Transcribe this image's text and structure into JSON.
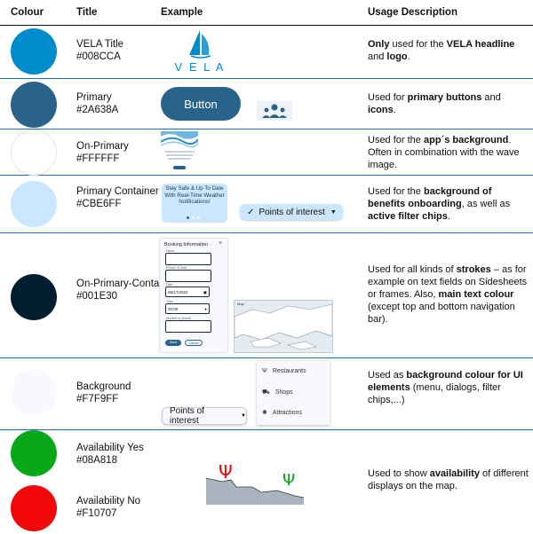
{
  "header": {
    "colour": "Colour",
    "title": "Title",
    "example": "Example",
    "usage": "Usage Description"
  },
  "rows": [
    {
      "name": "VELA Title",
      "hex": "#008CCA",
      "color": "#008CCA",
      "desc": [
        {
          "t": "Only",
          "b": true
        },
        {
          "t": " used for the "
        },
        {
          "t": "VELA headline",
          "b": true
        },
        {
          "t": " and "
        },
        {
          "t": "logo",
          "b": true
        },
        {
          "t": "."
        }
      ]
    },
    {
      "name": "Primary",
      "hex": "#2A638A",
      "color": "#2A638A",
      "desc": [
        {
          "t": "Used for "
        },
        {
          "t": "primary buttons",
          "b": true
        },
        {
          "t": " and "
        },
        {
          "t": "icons",
          "b": true
        },
        {
          "t": "."
        }
      ]
    },
    {
      "name": "On-Primary",
      "hex": "#FFFFFF",
      "color": "#FFFFFF",
      "desc": [
        {
          "t": "Used for the "
        },
        {
          "t": "app´s background",
          "b": true
        },
        {
          "t": ". Often in combination with the wave image."
        }
      ]
    },
    {
      "name": "Primary Container",
      "hex": "#CBE6FF",
      "color": "#CBE6FF",
      "desc": [
        {
          "t": "Used for the "
        },
        {
          "t": "background of benefits onboarding",
          "b": true
        },
        {
          "t": ", as well as "
        },
        {
          "t": "active filter chips",
          "b": true
        },
        {
          "t": "."
        }
      ]
    },
    {
      "name": "On-Primary-Container",
      "hex": "#001E30",
      "color": "#001E30",
      "desc": [
        {
          "t": "Used for all kinds of "
        },
        {
          "t": "strokes",
          "b": true
        },
        {
          "t": " – as for example on text fields on Sidesheets or frames. Also, "
        },
        {
          "t": "main text colour",
          "b": true
        },
        {
          "t": " (except top and bottom navigation bar)."
        }
      ]
    },
    {
      "name": "Background",
      "hex": "#F7F9FF",
      "color": "#F7F9FF",
      "desc": [
        {
          "t": "Used as "
        },
        {
          "t": "background colour for UI elements",
          "b": true
        },
        {
          "t": " (menu, dialogs, filter chips,...)"
        }
      ]
    },
    {
      "name": "Availability Yes",
      "hex": "#08A818",
      "color": "#08A818"
    },
    {
      "name": "Availability No",
      "hex": "#F10707",
      "color": "#F10707"
    }
  ],
  "availability_desc": [
    {
      "t": "Used to show "
    },
    {
      "t": "availability",
      "b": true
    },
    {
      "t": " of different displays on the map."
    }
  ],
  "examples": {
    "logo_text": "V E L A",
    "button_label": "Button",
    "onboarding_text": "Stay Safe & Up To Date With Real-Time Weather Notifications!",
    "chip_label": "Points of interest",
    "booking_title": "Booking Information",
    "booking_fields": [
      "Name",
      "Phone / E-Mail",
      "Date",
      "Time",
      "Number of people"
    ],
    "booking_date": "06/17/2022",
    "booking_time": "20:00",
    "booking_send": "Send",
    "booking_cancel": "Cancel",
    "map_label": "Map",
    "menu_items": [
      "Restaurants",
      "Shops",
      "Attractions"
    ],
    "chip2_label": "Points of interest"
  }
}
